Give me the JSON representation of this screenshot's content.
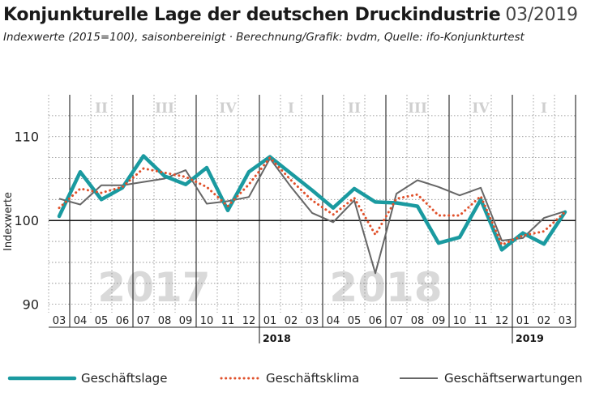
{
  "title": "Konjunkturelle Lage der deutschen Druckindustrie",
  "title_date": "03/2019",
  "subtitle": "Indexwerte (2015=100), saisonbereinigt · Berechnung/Grafik: bvdm, Quelle: ifo-Konjunkturtest",
  "chart_data": {
    "type": "line",
    "ylabel": "Indexwerte",
    "ylim": [
      89,
      115
    ],
    "yticks": [
      90,
      100,
      110
    ],
    "reference_line": 100,
    "grid": true,
    "legend_position": "bottom",
    "x": [
      "03",
      "04",
      "05",
      "06",
      "07",
      "08",
      "09",
      "10",
      "11",
      "12",
      "01",
      "02",
      "03",
      "04",
      "05",
      "06",
      "07",
      "08",
      "09",
      "10",
      "11",
      "12",
      "01",
      "02",
      "03"
    ],
    "year_labels": [
      {
        "label": "2018",
        "index": 10
      },
      {
        "label": "2019",
        "index": 22
      }
    ],
    "watermark_years": [
      {
        "label": "2017",
        "start": 0,
        "end": 9
      },
      {
        "label": "2018",
        "start": 10,
        "end": 21
      }
    ],
    "quarters": [
      {
        "label": "II",
        "start": 1,
        "end": 3
      },
      {
        "label": "III",
        "start": 4,
        "end": 6
      },
      {
        "label": "IV",
        "start": 7,
        "end": 9
      },
      {
        "label": "I",
        "start": 10,
        "end": 12
      },
      {
        "label": "II",
        "start": 13,
        "end": 15
      },
      {
        "label": "III",
        "start": 16,
        "end": 18
      },
      {
        "label": "IV",
        "start": 19,
        "end": 21
      },
      {
        "label": "I",
        "start": 22,
        "end": 24
      }
    ],
    "series": [
      {
        "name": "Geschäftslage",
        "color": "#1a9aa0",
        "style": "solid-thick",
        "values": [
          100.5,
          105.8,
          102.5,
          103.9,
          107.7,
          105.3,
          104.3,
          106.3,
          101.2,
          105.8,
          107.6,
          105.6,
          103.6,
          101.5,
          103.8,
          102.2,
          102.1,
          101.7,
          97.3,
          98.0,
          102.5,
          96.5,
          98.5,
          97.2,
          101.0
        ]
      },
      {
        "name": "Geschäftsklima",
        "color": "#e0502a",
        "style": "dotted",
        "values": [
          101.5,
          103.8,
          103.3,
          104.0,
          106.2,
          105.7,
          105.2,
          104.0,
          101.7,
          104.3,
          107.5,
          104.8,
          102.4,
          100.7,
          102.7,
          98.3,
          102.6,
          103.1,
          100.6,
          100.6,
          102.9,
          97.1,
          98.2,
          98.7,
          101.0
        ]
      },
      {
        "name": "Geschäftserwartungen",
        "color": "#666666",
        "style": "solid-thin",
        "values": [
          102.6,
          101.9,
          104.2,
          104.2,
          104.6,
          105.0,
          106.0,
          102.0,
          102.3,
          102.8,
          107.4,
          104.0,
          100.9,
          99.8,
          102.4,
          93.7,
          103.2,
          104.8,
          104.0,
          103.0,
          103.9,
          97.6,
          97.9,
          100.3,
          101.1
        ]
      }
    ]
  }
}
